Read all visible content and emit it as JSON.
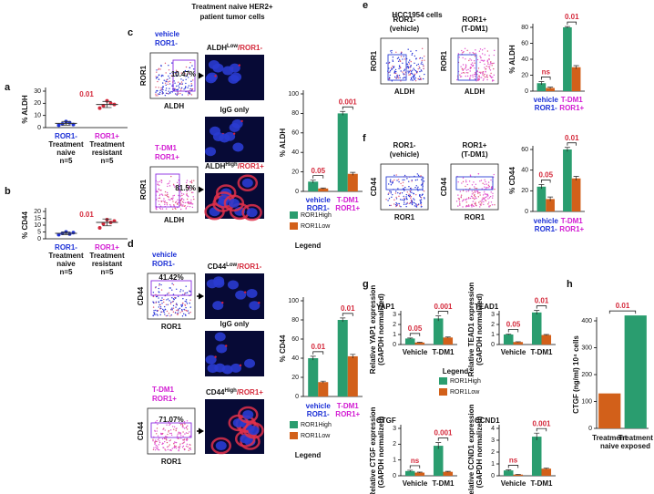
{
  "header": {
    "title": [
      "Treatment naive HER2+",
      "patient tumor cells"
    ],
    "cell_line": "HCC1954 cells"
  },
  "panels": [
    "a",
    "b",
    "c",
    "d",
    "e",
    "f",
    "g",
    "h"
  ],
  "flows": [
    {
      "labels": [
        "vehicle",
        "ROR1-"
      ],
      "label_color": "#1b2fd6",
      "gate": "10.47%",
      "xlabel": "ALDH",
      "ylabel": "ROR1"
    },
    {
      "labels": [
        "T-DM1",
        "ROR1+"
      ],
      "label_color": "#d21bd2",
      "gate": "81.5%",
      "xlabel": "ALDH",
      "ylabel": "ROR1"
    },
    {
      "labels": [
        "vehicle",
        "ROR1-"
      ],
      "label_color": "#1b2fd6",
      "gate": "41.42%",
      "xlabel": "ROR1",
      "ylabel": "CD44"
    },
    {
      "labels": [
        "T-DM1",
        "ROR1+"
      ],
      "label_color": "#d21bd2",
      "gate": "71.07%",
      "xlabel": "ROR1",
      "ylabel": "CD44"
    },
    {
      "labels": [
        "ROR1-",
        "(vehicle)"
      ],
      "label_color": "#111111",
      "xlabel": "ALDH",
      "ylabel": "ROR1"
    },
    {
      "labels": [
        "ROR1+",
        "(T-DM1)"
      ],
      "label_color": "#111111",
      "xlabel": "ALDH",
      "ylabel": "ROR1"
    },
    {
      "labels": [
        "ROR1-",
        "(vehicle)"
      ],
      "label_color": "#111111",
      "xlabel": "ROR1",
      "ylabel": "CD44"
    },
    {
      "labels": [
        "ROR1+",
        "(T-DM1)"
      ],
      "label_color": "#111111",
      "xlabel": "ROR1",
      "ylabel": "CD44"
    }
  ],
  "images": [
    {
      "marker": "ALDH",
      "level": "Low",
      "suffix": "/ROR1-"
    },
    {
      "text": "IgG only"
    },
    {
      "marker": "ALDH",
      "level": "High",
      "suffix": "/ROR1+"
    },
    {
      "marker": "CD44",
      "level": "Low",
      "suffix": "/ROR1-"
    },
    {
      "text": "IgG only"
    },
    {
      "marker": "CD44",
      "level": "High",
      "suffix": "/ROR1+"
    }
  ],
  "chart_data": [
    {
      "type": "dot",
      "ylabel": "% ALDH",
      "ylim": [
        0,
        30
      ],
      "yticks": [
        0,
        10,
        20,
        30
      ],
      "categories": [
        "ROR1-",
        "ROR1+"
      ],
      "category_colors": [
        "#1b2fd6",
        "#d21bd2"
      ],
      "category_notes": [
        [
          "Treatment",
          "naive",
          "n=5"
        ],
        [
          "Treatment",
          "resistant",
          "n=5"
        ]
      ],
      "point_colors": [
        "#1b2fd6",
        "#d4283a"
      ],
      "points": [
        [
          2,
          3,
          5,
          4,
          2.5
        ],
        [
          16,
          18,
          22,
          20,
          19
        ]
      ],
      "means": [
        3.5,
        19
      ],
      "sd": [
        1.5,
        2.5
      ],
      "annotation": "0.01"
    },
    {
      "type": "dot",
      "ylabel": "% CD44",
      "ylim": [
        0,
        20
      ],
      "yticks": [
        0,
        5,
        10,
        15,
        20
      ],
      "categories": [
        "ROR1-",
        "ROR1+"
      ],
      "category_colors": [
        "#1b2fd6",
        "#d21bd2"
      ],
      "category_notes": [
        [
          "Treatment",
          "naive",
          "n=5"
        ],
        [
          "Treatment",
          "resistant",
          "n=5"
        ]
      ],
      "point_colors": [
        "#1b2fd6",
        "#d4283a"
      ],
      "points": [
        [
          3,
          4,
          5,
          3.5,
          4.5
        ],
        [
          8,
          11,
          14,
          12,
          13
        ]
      ],
      "means": [
        4,
        12
      ],
      "sd": [
        1,
        2.5
      ],
      "annotation": "0.01"
    },
    {
      "type": "bar",
      "ylabel": "% ALDH",
      "ylim": [
        0,
        100
      ],
      "yticks": [
        0,
        20,
        40,
        60,
        80,
        100
      ],
      "categories": [
        [
          "vehicle",
          "ROR1-"
        ],
        [
          "T-DM1",
          "ROR1+"
        ]
      ],
      "category_colors": [
        "#1b2fd6",
        "#d21bd2"
      ],
      "series": [
        {
          "name": "ROR1High",
          "color": "#2a9d6f",
          "values": [
            10,
            80
          ],
          "errors": [
            1.5,
            2
          ]
        },
        {
          "name": "ROR1Low",
          "color": "#d2601a",
          "values": [
            3,
            18
          ],
          "errors": [
            0.5,
            1.5
          ]
        }
      ],
      "annotations": [
        "0.05",
        "0.001"
      ],
      "legend": true,
      "legend_title": "Legend"
    },
    {
      "type": "bar",
      "ylabel": "% CD44",
      "ylim": [
        0,
        100
      ],
      "yticks": [
        0,
        20,
        40,
        60,
        80,
        100
      ],
      "categories": [
        [
          "vehicle",
          "ROR1-"
        ],
        [
          "T-DM1",
          "ROR1+"
        ]
      ],
      "category_colors": [
        "#1b2fd6",
        "#d21bd2"
      ],
      "series": [
        {
          "name": "ROR1High",
          "color": "#2a9d6f",
          "values": [
            40,
            80
          ],
          "errors": [
            2,
            2
          ]
        },
        {
          "name": "ROR1Low",
          "color": "#d2601a",
          "values": [
            15,
            42
          ],
          "errors": [
            1,
            2
          ]
        }
      ],
      "annotations": [
        "0.01",
        "0.01"
      ],
      "legend": true,
      "legend_title": "Legend"
    },
    {
      "type": "bar",
      "ylabel": "% ALDH",
      "ylim": [
        0,
        80
      ],
      "yticks": [
        0,
        20,
        40,
        60,
        80
      ],
      "categories": [
        [
          "vehicle",
          "ROR1-"
        ],
        [
          "T-DM1",
          "ROR1+"
        ]
      ],
      "category_colors": [
        "#1b2fd6",
        "#d21bd2"
      ],
      "series": [
        {
          "name": "ROR1High",
          "color": "#2a9d6f",
          "values": [
            10,
            80
          ],
          "errors": [
            2,
            1
          ]
        },
        {
          "name": "ROR1Low",
          "color": "#d2601a",
          "values": [
            4,
            30
          ],
          "errors": [
            1,
            2
          ]
        }
      ],
      "annotations": [
        "ns",
        "0.01"
      ]
    },
    {
      "type": "bar",
      "ylabel": "% CD44",
      "ylim": [
        0,
        60
      ],
      "yticks": [
        0,
        20,
        40,
        60
      ],
      "categories": [
        [
          "vehicle",
          "ROR1-"
        ],
        [
          "T-DM1",
          "ROR1+"
        ]
      ],
      "category_colors": [
        "#1b2fd6",
        "#d21bd2"
      ],
      "series": [
        {
          "name": "ROR1High",
          "color": "#2a9d6f",
          "values": [
            24,
            60
          ],
          "errors": [
            2,
            2
          ]
        },
        {
          "name": "ROR1Low",
          "color": "#d2601a",
          "values": [
            12,
            32
          ],
          "errors": [
            2,
            2
          ]
        }
      ],
      "annotations": [
        "0.05",
        "0.01"
      ]
    },
    {
      "type": "bar",
      "label": "YAP1",
      "ylabel": [
        "Relative YAP1 expression",
        "(GAPDH normalized)"
      ],
      "ylim": [
        0,
        3
      ],
      "yticks": [
        0,
        1,
        2,
        3
      ],
      "categories": [
        "Vehicle",
        "T-DM1"
      ],
      "series": [
        {
          "name": "ROR1High",
          "color": "#2a9d6f",
          "values": [
            0.6,
            2.6
          ],
          "errors": [
            0.05,
            0.25
          ]
        },
        {
          "name": "ROR1Low",
          "color": "#d2601a",
          "values": [
            0.2,
            0.7
          ],
          "errors": [
            0.03,
            0.05
          ]
        }
      ],
      "annotations": [
        "0.05",
        "0.001"
      ],
      "legend": true,
      "legend_title": "Legend"
    },
    {
      "type": "bar",
      "label": "TEAD1",
      "ylabel": [
        "Relative TEAD1 expression",
        "(GAPDH normalized)"
      ],
      "ylim": [
        0,
        3
      ],
      "yticks": [
        0,
        1,
        2,
        3
      ],
      "categories": [
        "Vehicle",
        "T-DM1"
      ],
      "series": [
        {
          "name": "ROR1High",
          "color": "#2a9d6f",
          "values": [
            1.0,
            3.2
          ],
          "errors": [
            0.05,
            0.2
          ]
        },
        {
          "name": "ROR1Low",
          "color": "#d2601a",
          "values": [
            0.25,
            0.95
          ],
          "errors": [
            0.03,
            0.05
          ]
        }
      ],
      "annotations": [
        "0.05",
        "0.01"
      ]
    },
    {
      "type": "bar",
      "label": "CTGF",
      "ylabel": [
        "Relative CTGF expression",
        "(GAPDH normalized)"
      ],
      "ylim": [
        0,
        3
      ],
      "yticks": [
        0,
        1,
        2,
        3
      ],
      "categories": [
        "Vehicle",
        "T-DM1"
      ],
      "series": [
        {
          "name": "ROR1High",
          "color": "#2a9d6f",
          "values": [
            0.3,
            1.9
          ],
          "errors": [
            0.05,
            0.2
          ]
        },
        {
          "name": "ROR1Low",
          "color": "#d2601a",
          "values": [
            0.2,
            0.25
          ],
          "errors": [
            0.03,
            0.03
          ]
        }
      ],
      "annotations": [
        "ns",
        "0.001"
      ]
    },
    {
      "type": "bar",
      "label": "CCND1",
      "ylabel": [
        "Relative CCND1 expression",
        "(GAPDH normalized)"
      ],
      "ylim": [
        0,
        4
      ],
      "yticks": [
        0,
        1,
        2,
        3,
        4
      ],
      "categories": [
        "Vehicle",
        "T-DM1"
      ],
      "series": [
        {
          "name": "ROR1High",
          "color": "#2a9d6f",
          "values": [
            0.45,
            3.3
          ],
          "errors": [
            0.05,
            0.3
          ]
        },
        {
          "name": "ROR1Low",
          "color": "#d2601a",
          "values": [
            0.1,
            0.6
          ],
          "errors": [
            0.02,
            0.05
          ]
        }
      ],
      "annotations": [
        "ns",
        "0.001"
      ]
    },
    {
      "type": "bar",
      "ylabel": "CTGF (ng/ml) 10⁴ cells",
      "ylim": [
        0,
        400
      ],
      "yticks": [
        0,
        100,
        200,
        300,
        400
      ],
      "categories": [
        [
          "Treatment",
          "naive"
        ],
        [
          "Treatment",
          "exposed"
        ]
      ],
      "values": [
        130,
        420
      ],
      "colors": [
        "#d2601a",
        "#2a9d6f"
      ],
      "annotation": "0.01"
    }
  ]
}
